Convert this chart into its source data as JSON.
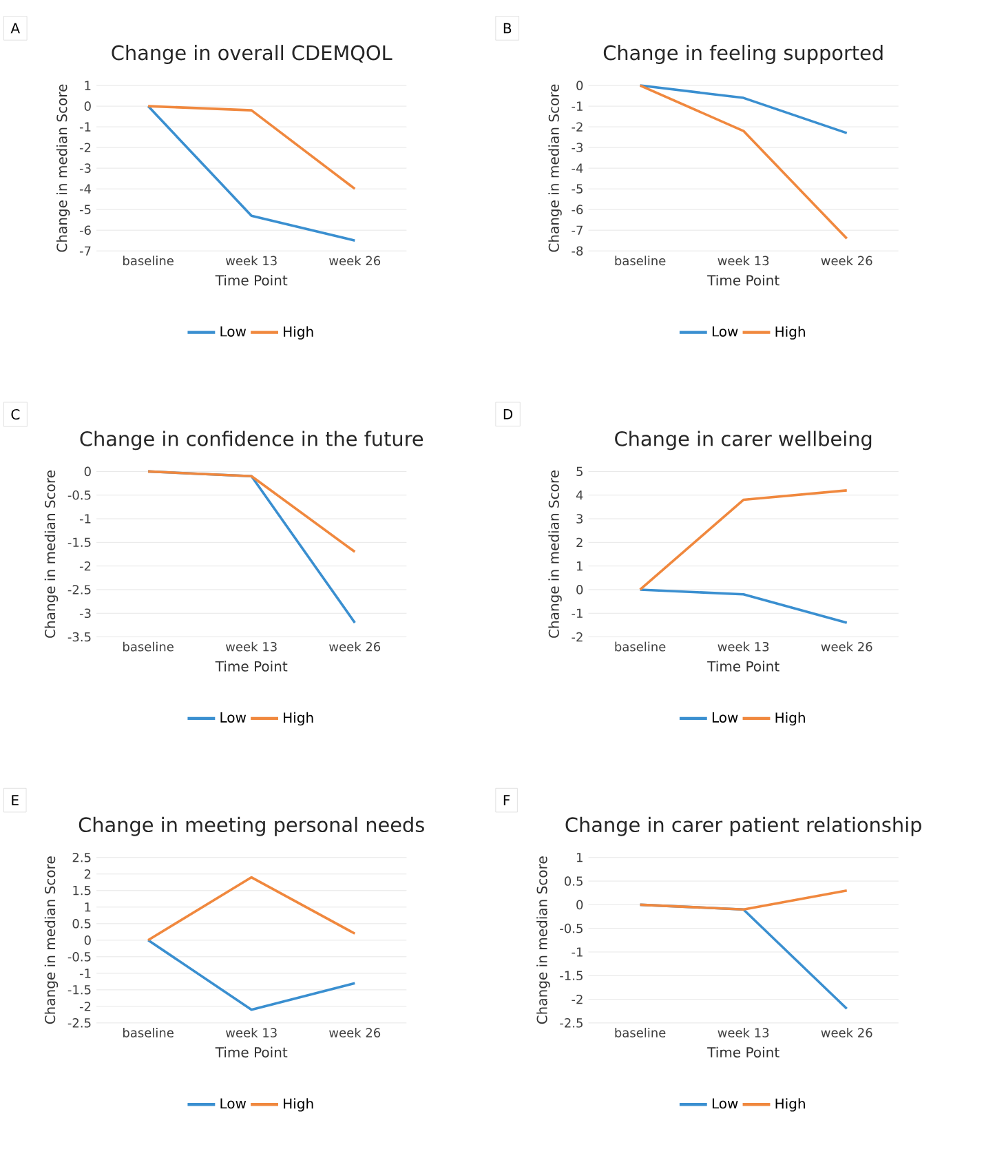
{
  "chart_data": [
    {
      "type": "line",
      "title": "Change in overall CDEMQOL",
      "xlabel": "Time Point",
      "ylabel": "Change in median Score",
      "annotations": [
        "A"
      ],
      "categories": [
        "baseline",
        "week 13",
        "week 26"
      ],
      "series": [
        {
          "name": "Low",
          "color": "#3a8fd0",
          "values": [
            0,
            -5.3,
            -6.5
          ]
        },
        {
          "name": "High",
          "color": "#f0883e",
          "values": [
            0,
            -0.2,
            -4
          ]
        }
      ],
      "ylim": [
        -7,
        1
      ],
      "yticks": [
        -7,
        -6,
        -5,
        -4,
        -3,
        -2,
        -1,
        0,
        1
      ],
      "grid": "y",
      "legend": "bottom"
    },
    {
      "type": "line",
      "title": "Change in feeling supported",
      "xlabel": "Time Point",
      "ylabel": "Change in median Score",
      "annotations": [
        "B"
      ],
      "categories": [
        "baseline",
        "week 13",
        "week 26"
      ],
      "series": [
        {
          "name": "Low",
          "color": "#3a8fd0",
          "values": [
            0,
            -0.6,
            -2.3
          ]
        },
        {
          "name": "High",
          "color": "#f0883e",
          "values": [
            0,
            -2.2,
            -7.4
          ]
        }
      ],
      "ylim": [
        -8,
        0
      ],
      "yticks": [
        -8,
        -7,
        -6,
        -5,
        -4,
        -3,
        -2,
        -1,
        0
      ],
      "grid": "y",
      "legend": "bottom"
    },
    {
      "type": "line",
      "title": "Change in confidence in the future",
      "xlabel": "Time Point",
      "ylabel": "Change in median Score",
      "annotations": [
        "C"
      ],
      "categories": [
        "baseline",
        "week 13",
        "week 26"
      ],
      "series": [
        {
          "name": "Low",
          "color": "#3a8fd0",
          "values": [
            0,
            -0.1,
            -3.2
          ]
        },
        {
          "name": "High",
          "color": "#f0883e",
          "values": [
            0,
            -0.1,
            -1.7
          ]
        }
      ],
      "ylim": [
        -3.5,
        0
      ],
      "yticks": [
        -3.5,
        -3,
        -2.5,
        -2,
        -1.5,
        -1,
        -0.5,
        0
      ],
      "grid": "y",
      "legend": "bottom"
    },
    {
      "type": "line",
      "title": "Change in carer wellbeing",
      "xlabel": "Time Point",
      "ylabel": "Change in median Score",
      "annotations": [
        "D"
      ],
      "categories": [
        "baseline",
        "week 13",
        "week 26"
      ],
      "series": [
        {
          "name": "Low",
          "color": "#3a8fd0",
          "values": [
            0,
            -0.2,
            -1.4
          ]
        },
        {
          "name": "High",
          "color": "#f0883e",
          "values": [
            0,
            3.8,
            4.2
          ]
        }
      ],
      "ylim": [
        -2,
        5
      ],
      "yticks": [
        -2,
        -1,
        0,
        1,
        2,
        3,
        4,
        5
      ],
      "grid": "y",
      "legend": "bottom"
    },
    {
      "type": "line",
      "title": "Change in meeting personal needs",
      "xlabel": "Time Point",
      "ylabel": "Change in median Score",
      "annotations": [
        "E"
      ],
      "categories": [
        "baseline",
        "week 13",
        "week 26"
      ],
      "series": [
        {
          "name": "Low",
          "color": "#3a8fd0",
          "values": [
            0,
            -2.1,
            -1.3
          ]
        },
        {
          "name": "High",
          "color": "#f0883e",
          "values": [
            0,
            1.9,
            0.2
          ]
        }
      ],
      "ylim": [
        -2.5,
        2.5
      ],
      "yticks": [
        -2.5,
        -2,
        -1.5,
        -1,
        -0.5,
        0,
        0.5,
        1,
        1.5,
        2,
        2.5
      ],
      "grid": "y",
      "legend": "bottom"
    },
    {
      "type": "line",
      "title": "Change in carer patient relationship",
      "xlabel": "Time Point",
      "ylabel": "Change in median Score",
      "annotations": [
        "F"
      ],
      "categories": [
        "baseline",
        "week 13",
        "week 26"
      ],
      "series": [
        {
          "name": "Low",
          "color": "#3a8fd0",
          "values": [
            0,
            -0.1,
            -2.2
          ]
        },
        {
          "name": "High",
          "color": "#f0883e",
          "values": [
            0,
            -0.1,
            0.3
          ]
        }
      ],
      "ylim": [
        -2.5,
        1
      ],
      "yticks": [
        -2.5,
        -2,
        -1.5,
        -1,
        -0.5,
        0,
        0.5,
        1
      ],
      "grid": "y",
      "legend": "bottom"
    }
  ]
}
